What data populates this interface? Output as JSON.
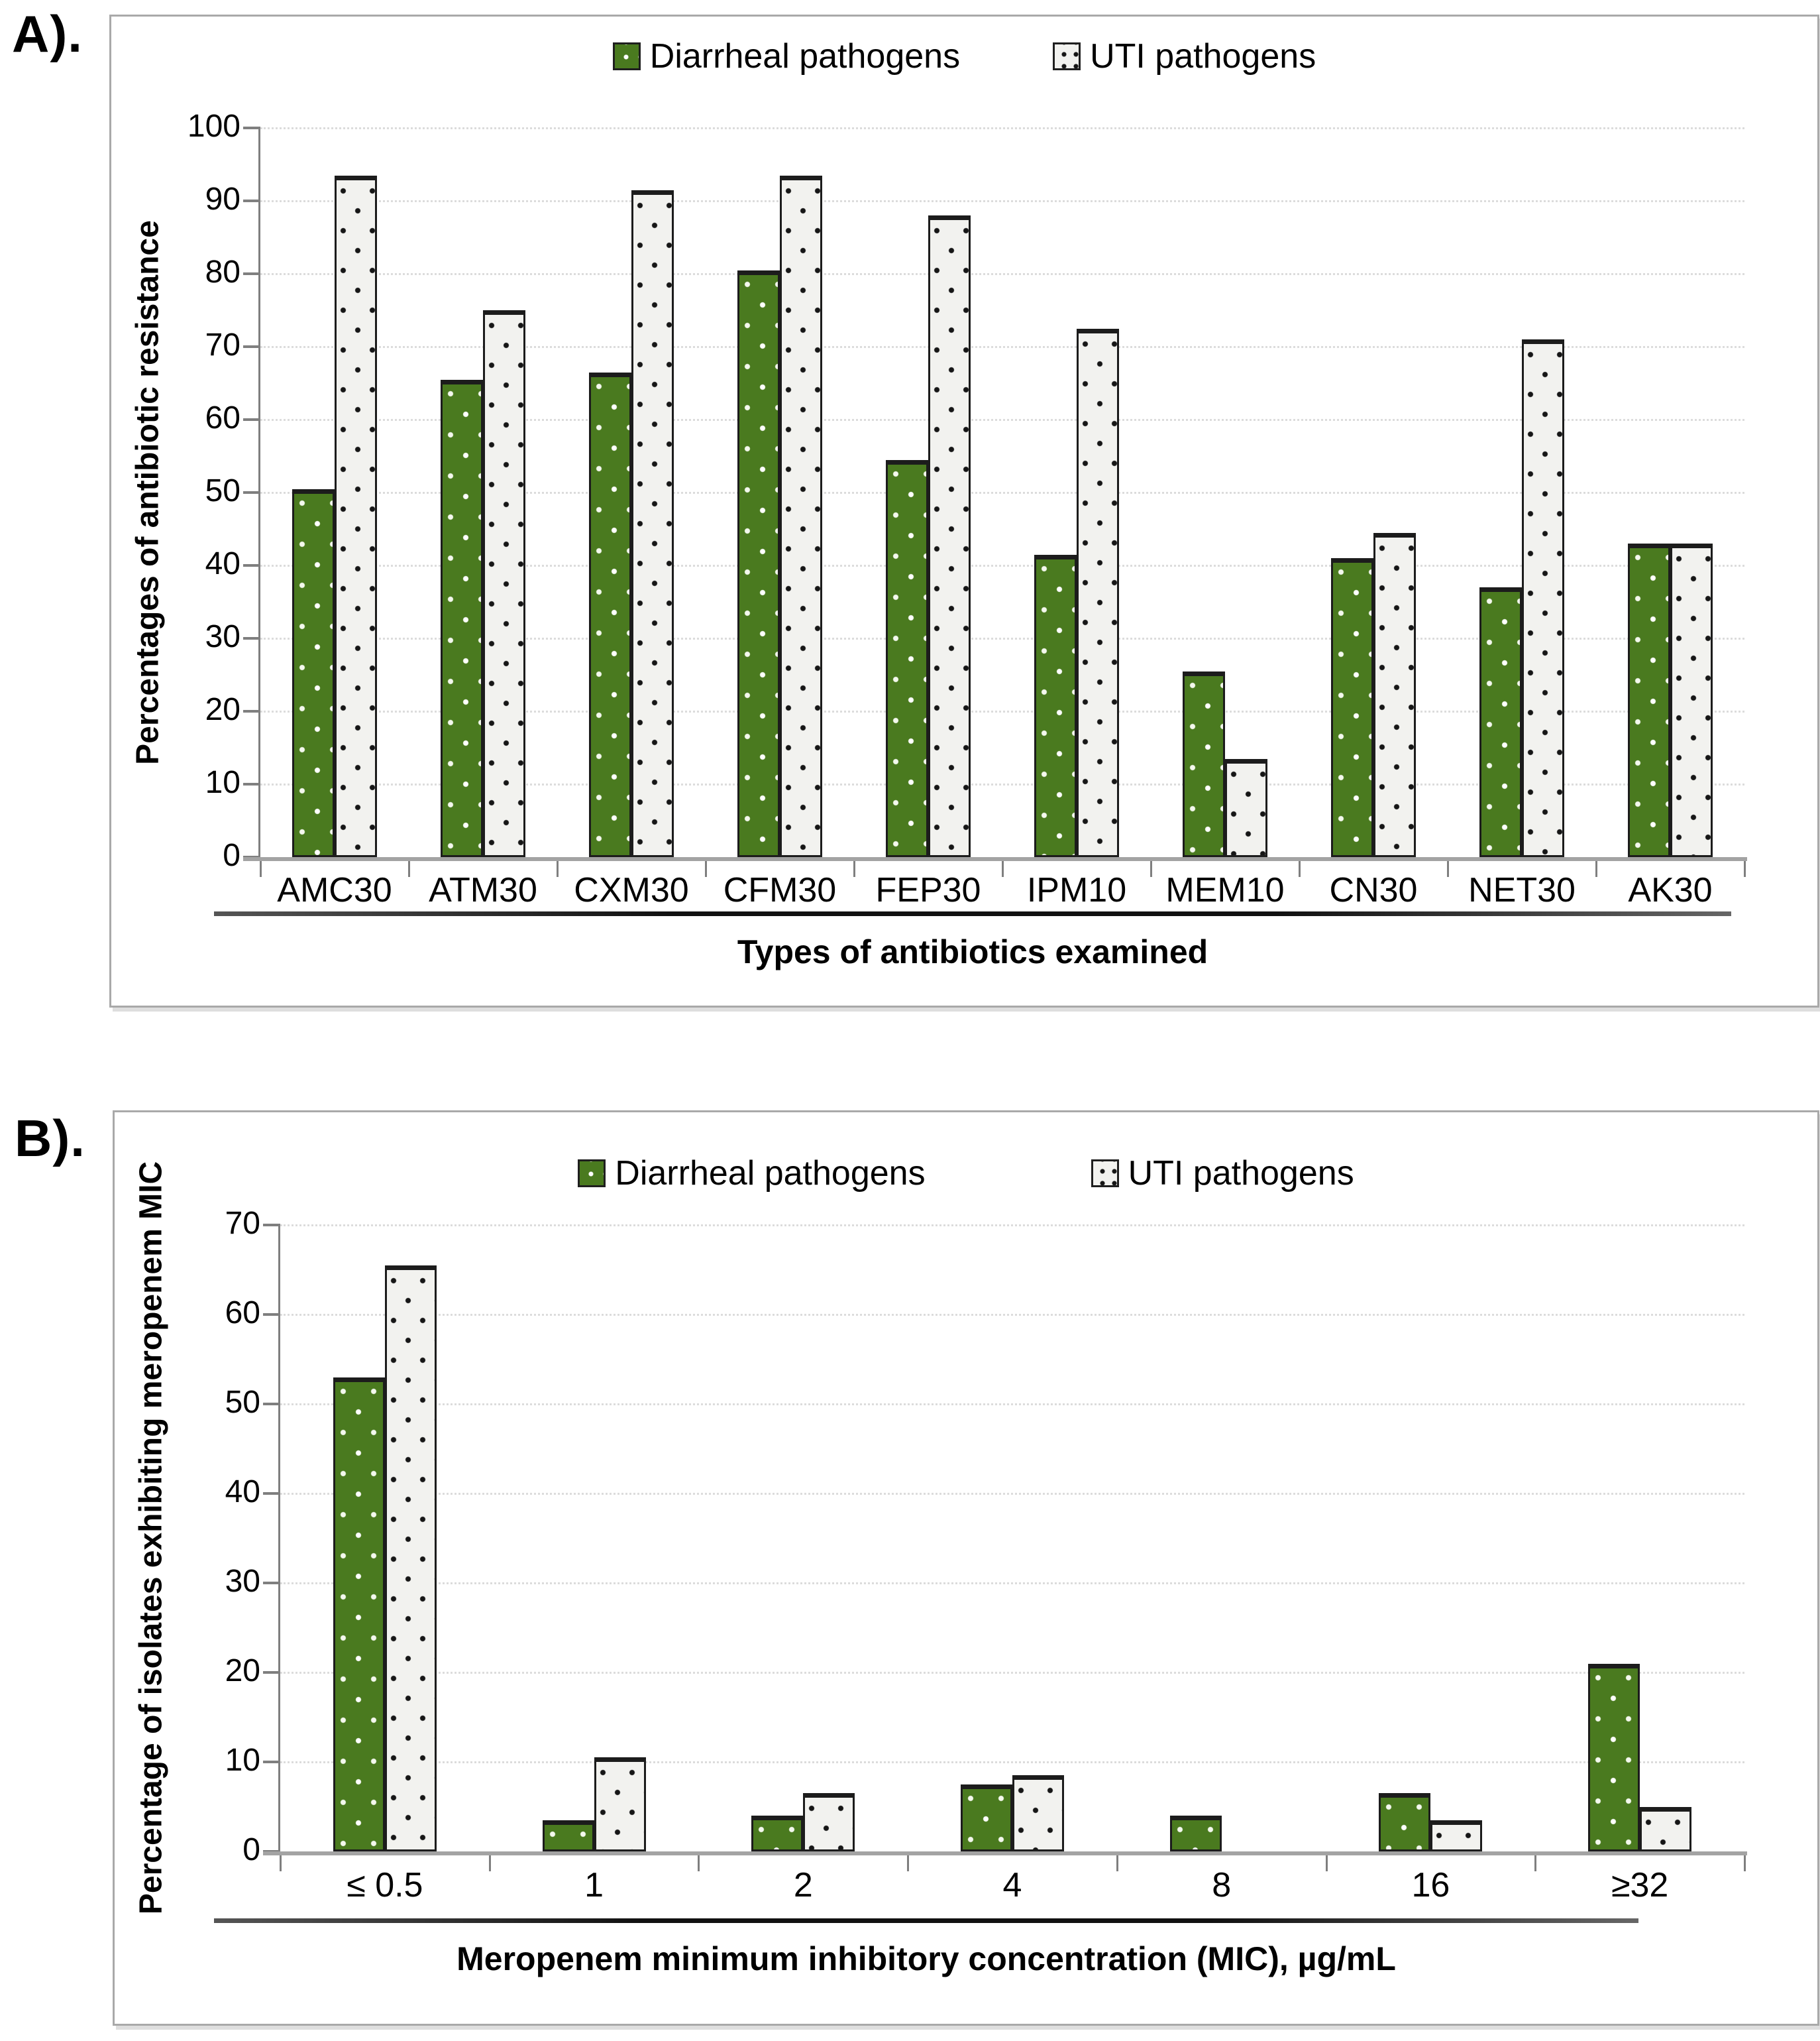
{
  "chart_data": [
    {
      "panel_label": "A).",
      "type": "bar",
      "categories": [
        "AMC30",
        "ATM30",
        "CXM30",
        "CFM30",
        "FEP30",
        "IPM10",
        "MEM10",
        "CN30",
        "NET30",
        "AK30"
      ],
      "series": [
        {
          "name": "Diarrheal pathogens",
          "color": "#4a7a1f",
          "pattern": "green-with-white-dots",
          "values": [
            50.5,
            65.5,
            66.5,
            80.5,
            54.5,
            41.5,
            25.5,
            41,
            37,
            43
          ]
        },
        {
          "name": "UTI pathogens",
          "color": "#f2f2ef",
          "pattern": "white-with-black-dots",
          "values": [
            93.5,
            75,
            91.5,
            93.5,
            88,
            72.5,
            13.5,
            44.5,
            71,
            43
          ]
        }
      ],
      "title": "",
      "xlabel": "Types of antibiotics examined",
      "ylabel": "Percentages of antibiotic resistance",
      "ylim": [
        0,
        100
      ],
      "ytick_step": 10,
      "grid": "horizontal-dotted",
      "legend_position": "top-center"
    },
    {
      "panel_label": "B).",
      "type": "bar",
      "categories": [
        "≤ 0.5",
        "1",
        "2",
        "4",
        "8",
        "16",
        "≥32"
      ],
      "series": [
        {
          "name": "Diarrheal pathogens",
          "color": "#4a7a1f",
          "pattern": "green-with-white-dots",
          "values": [
            53,
            3.5,
            4,
            7.5,
            4,
            6.5,
            21
          ]
        },
        {
          "name": "UTI pathogens",
          "color": "#f2f2ef",
          "pattern": "white-with-black-dots",
          "values": [
            65.5,
            10.5,
            6.5,
            8.5,
            0,
            3.5,
            5
          ]
        }
      ],
      "title": "",
      "xlabel": "Meropenem minimum inhibitory concentration (MIC), µg/mL",
      "ylabel": "Percentage of isolates exhibiting meropenem MIC",
      "ylim": [
        0,
        70
      ],
      "ytick_step": 10,
      "grid": "horizontal-dotted",
      "legend_position": "top-center"
    }
  ]
}
